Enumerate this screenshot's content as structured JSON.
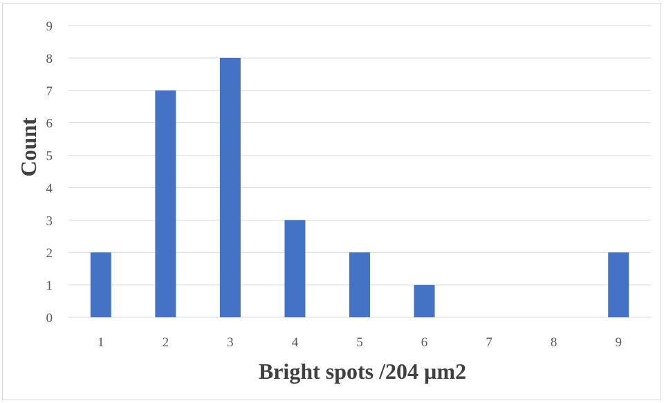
{
  "chart_data": {
    "type": "bar",
    "categories": [
      "1",
      "2",
      "3",
      "4",
      "5",
      "6",
      "7",
      "8",
      "9"
    ],
    "values": [
      2,
      7,
      8,
      3,
      2,
      1,
      0,
      0,
      2
    ],
    "title": "",
    "xlabel": "Bright spots /204 µm2",
    "ylabel": "Count",
    "ylim": [
      0,
      9
    ],
    "yticks": [
      "0",
      "1",
      "2",
      "3",
      "4",
      "5",
      "6",
      "7",
      "8",
      "9"
    ],
    "grid": true,
    "bar_color": "#4472C4",
    "gridline_color": "#d9d9d9"
  }
}
